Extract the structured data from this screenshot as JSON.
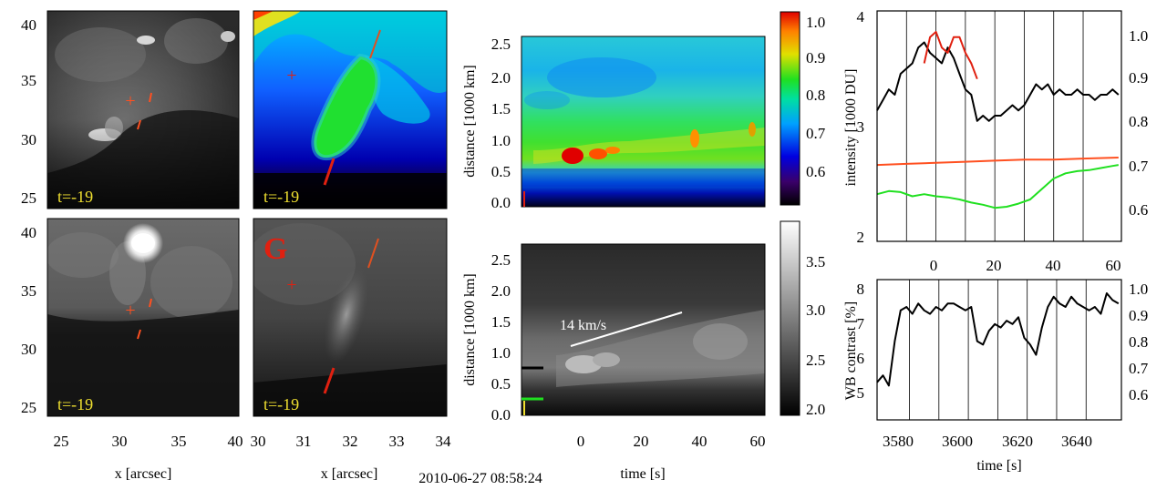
{
  "timestamp": "2010-06-27 08:58:24",
  "colors": {
    "red": "#e02010",
    "yellow": "#f0e030",
    "green": "#20e020",
    "accent_orange": "#ff5020"
  },
  "image_panels": {
    "frame_label": "t=-19",
    "panel_letter": "G",
    "marker": "+",
    "y_ticks": [
      "40",
      "35",
      "30",
      "25"
    ],
    "x_ticks_left": [
      "25",
      "30",
      "35",
      "40"
    ],
    "x_ticks_mid": [
      "30",
      "31",
      "32",
      "33",
      "34"
    ],
    "xlabel": "x [arcsec]"
  },
  "xt_diagrams": {
    "ylabel": "distance [1000 km]",
    "xlabel": "time [s]",
    "y_ticks": [
      "2.5",
      "2.0",
      "1.5",
      "1.0",
      "0.5",
      "0.0"
    ],
    "x_ticks": [
      "0",
      "20",
      "40",
      "60"
    ],
    "speed_label": "14 km/s",
    "colorbar_top_ticks": [
      "1.0",
      "0.9",
      "0.8",
      "0.7",
      "0.6"
    ],
    "colorbar_bottom_ticks": [
      "3.5",
      "3.0",
      "2.5",
      "2.0"
    ]
  },
  "chart_data": [
    {
      "type": "line",
      "title": "",
      "ylabel": "intensity [1000 DU]",
      "left_y_ticks": [
        "4",
        "3",
        "2"
      ],
      "right_y_ticks": [
        "1.0",
        "0.9",
        "0.8",
        "0.7",
        "0.6"
      ],
      "top_x_ticks": [
        "0",
        "20",
        "40",
        "60"
      ],
      "ylim": [
        1.9,
        4.1
      ],
      "xlim": [
        -21,
        62
      ],
      "vertical_lines_at": [
        -11,
        -1,
        9,
        19,
        29,
        39,
        49
      ],
      "series": [
        {
          "name": "black",
          "color": "#000000",
          "x": [
            -21,
            -19,
            -17,
            -15,
            -13,
            -11,
            -9,
            -7,
            -5,
            -3,
            -1,
            1,
            3,
            5,
            7,
            9,
            11,
            13,
            15,
            17,
            19,
            21,
            23,
            25,
            27,
            29,
            31,
            33,
            35,
            37,
            39,
            41,
            43,
            45,
            47,
            49,
            51,
            53,
            55,
            57,
            59,
            61
          ],
          "values": [
            3.15,
            3.25,
            3.35,
            3.3,
            3.5,
            3.55,
            3.6,
            3.75,
            3.8,
            3.7,
            3.65,
            3.6,
            3.75,
            3.65,
            3.5,
            3.35,
            3.3,
            3.05,
            3.1,
            3.05,
            3.1,
            3.1,
            3.15,
            3.2,
            3.15,
            3.2,
            3.3,
            3.4,
            3.35,
            3.4,
            3.3,
            3.35,
            3.3,
            3.3,
            3.35,
            3.3,
            3.3,
            3.25,
            3.3,
            3.3,
            3.35,
            3.3
          ]
        },
        {
          "name": "red",
          "color": "#e02010",
          "x": [
            -5,
            -3,
            -1,
            1,
            3,
            5,
            7,
            9,
            11,
            13
          ],
          "values": [
            3.6,
            3.85,
            3.9,
            3.75,
            3.7,
            3.85,
            3.85,
            3.7,
            3.6,
            3.45
          ]
        },
        {
          "name": "orange",
          "color": "#ff5020",
          "x": [
            -21,
            -11,
            -1,
            9,
            19,
            29,
            39,
            49,
            61
          ],
          "values": [
            2.63,
            2.64,
            2.65,
            2.66,
            2.67,
            2.68,
            2.68,
            2.69,
            2.7
          ]
        },
        {
          "name": "green",
          "color": "#20e020",
          "x": [
            -21,
            -17,
            -13,
            -9,
            -5,
            -1,
            3,
            7,
            11,
            15,
            19,
            23,
            27,
            31,
            35,
            39,
            43,
            47,
            51,
            55,
            59,
            61
          ],
          "values": [
            2.35,
            2.38,
            2.37,
            2.33,
            2.35,
            2.33,
            2.32,
            2.3,
            2.27,
            2.25,
            2.22,
            2.23,
            2.26,
            2.3,
            2.4,
            2.5,
            2.55,
            2.57,
            2.58,
            2.6,
            2.62,
            2.63
          ]
        }
      ]
    },
    {
      "type": "line",
      "title": "",
      "xlabel": "time [s]",
      "ylabel": "WB contrast [%]",
      "left_y_ticks": [
        "8",
        "7",
        "6",
        "5"
      ],
      "right_y_ticks": [
        "1.0",
        "0.9",
        "0.8",
        "0.7",
        "0.6"
      ],
      "x_ticks": [
        "3580",
        "3600",
        "3620",
        "3640"
      ],
      "ylim": [
        4.2,
        8.3
      ],
      "xlim": [
        3574,
        3657
      ],
      "vertical_lines_at": [
        3585,
        3595,
        3605,
        3615,
        3625,
        3635,
        3645
      ],
      "series": [
        {
          "name": "black",
          "color": "#000000",
          "x": [
            3574,
            3576,
            3578,
            3580,
            3582,
            3584,
            3586,
            3588,
            3590,
            3592,
            3594,
            3596,
            3598,
            3600,
            3602,
            3604,
            3606,
            3608,
            3610,
            3612,
            3614,
            3616,
            3618,
            3620,
            3622,
            3624,
            3626,
            3628,
            3630,
            3632,
            3634,
            3636,
            3638,
            3640,
            3642,
            3644,
            3646,
            3648,
            3650,
            3652,
            3654,
            3656
          ],
          "values": [
            5.3,
            5.5,
            5.2,
            6.5,
            7.4,
            7.5,
            7.3,
            7.6,
            7.4,
            7.3,
            7.5,
            7.4,
            7.6,
            7.6,
            7.5,
            7.4,
            7.5,
            6.5,
            6.4,
            6.8,
            7.0,
            6.9,
            7.1,
            7.0,
            7.2,
            6.6,
            6.4,
            6.1,
            6.9,
            7.5,
            7.8,
            7.6,
            7.5,
            7.8,
            7.6,
            7.5,
            7.4,
            7.5,
            7.3,
            7.9,
            7.7,
            7.6
          ]
        }
      ]
    }
  ]
}
